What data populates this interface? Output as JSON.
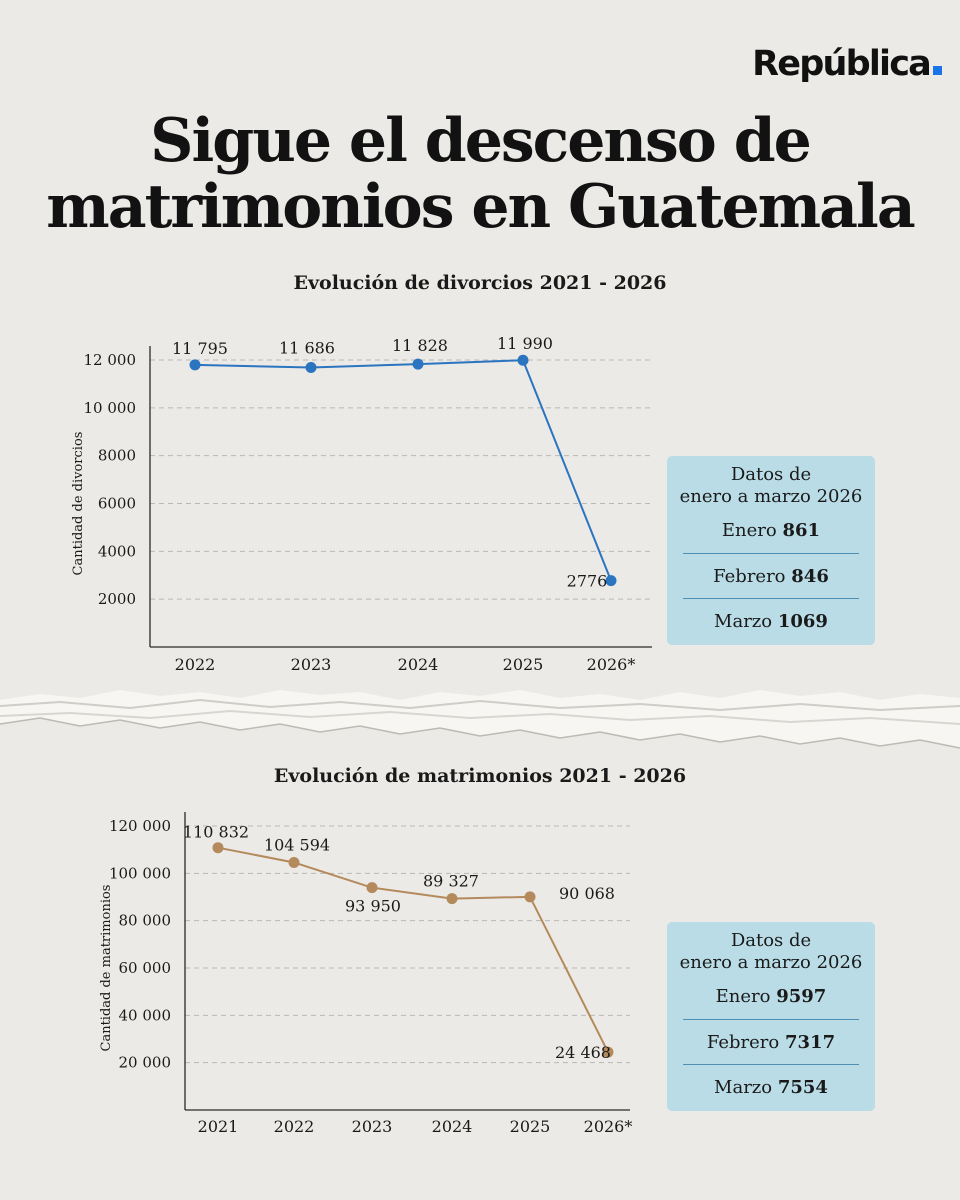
{
  "brand": {
    "name": "República",
    "accent": "#1a73e8"
  },
  "headline": {
    "line1": "Sigue el descenso de",
    "line2": "matrimonios en Guatemala"
  },
  "chart_data": [
    {
      "type": "line",
      "title": "Evolución de  divorcios 2021 - 2026",
      "ylabel": "Cantidad de divorcios",
      "xlabel": "",
      "categories": [
        "2022",
        "2023",
        "2024",
        "2025",
        "2026*"
      ],
      "series": [
        {
          "color": "#2a74c0",
          "values": [
            11795,
            11686,
            11828,
            11990,
            2776
          ]
        }
      ],
      "data_labels": [
        "11 795",
        "11 686",
        "11 828",
        "11 990",
        "2776"
      ],
      "ylim": [
        0,
        12000
      ],
      "yticks": [
        2000,
        4000,
        6000,
        8000,
        10000,
        12000
      ],
      "ytick_labels": [
        "2000",
        "4000",
        "6000",
        "8000",
        "10 000",
        "12 000"
      ],
      "grid": "horizontal dashed",
      "legend": "none"
    },
    {
      "type": "line",
      "title": "Evolución de matrimonios 2021 - 2026",
      "ylabel": "Cantidad de matrimonios",
      "xlabel": "",
      "categories": [
        "2021",
        "2022",
        "2023",
        "2024",
        "2025",
        "2026*"
      ],
      "series": [
        {
          "color": "#b48a5c",
          "values": [
            110832,
            104594,
            93950,
            89327,
            90068,
            24468
          ]
        }
      ],
      "data_labels": [
        "110 832",
        "104 594",
        "93 950",
        "89 327",
        "90 068",
        "24 468"
      ],
      "ylim": [
        0,
        120000
      ],
      "yticks": [
        20000,
        40000,
        60000,
        80000,
        100000,
        120000
      ],
      "ytick_labels": [
        "20 000",
        "40 000",
        "60 000",
        "80 000",
        "100 000",
        "120 000"
      ],
      "grid": "horizontal dashed",
      "legend": "none"
    }
  ],
  "infobox_divorcios": {
    "heading_line1": "Datos de",
    "heading_line2": "enero a marzo 2026",
    "rows": [
      {
        "month": "Enero",
        "value": "861"
      },
      {
        "month": "Febrero",
        "value": "846"
      },
      {
        "month": "Marzo",
        "value": "1069"
      }
    ]
  },
  "infobox_matrimonios": {
    "heading_line1": "Datos de",
    "heading_line2": "enero a marzo 2026",
    "rows": [
      {
        "month": "Enero",
        "value": "9597"
      },
      {
        "month": "Febrero",
        "value": "7317"
      },
      {
        "month": "Marzo",
        "value": "7554"
      }
    ]
  }
}
